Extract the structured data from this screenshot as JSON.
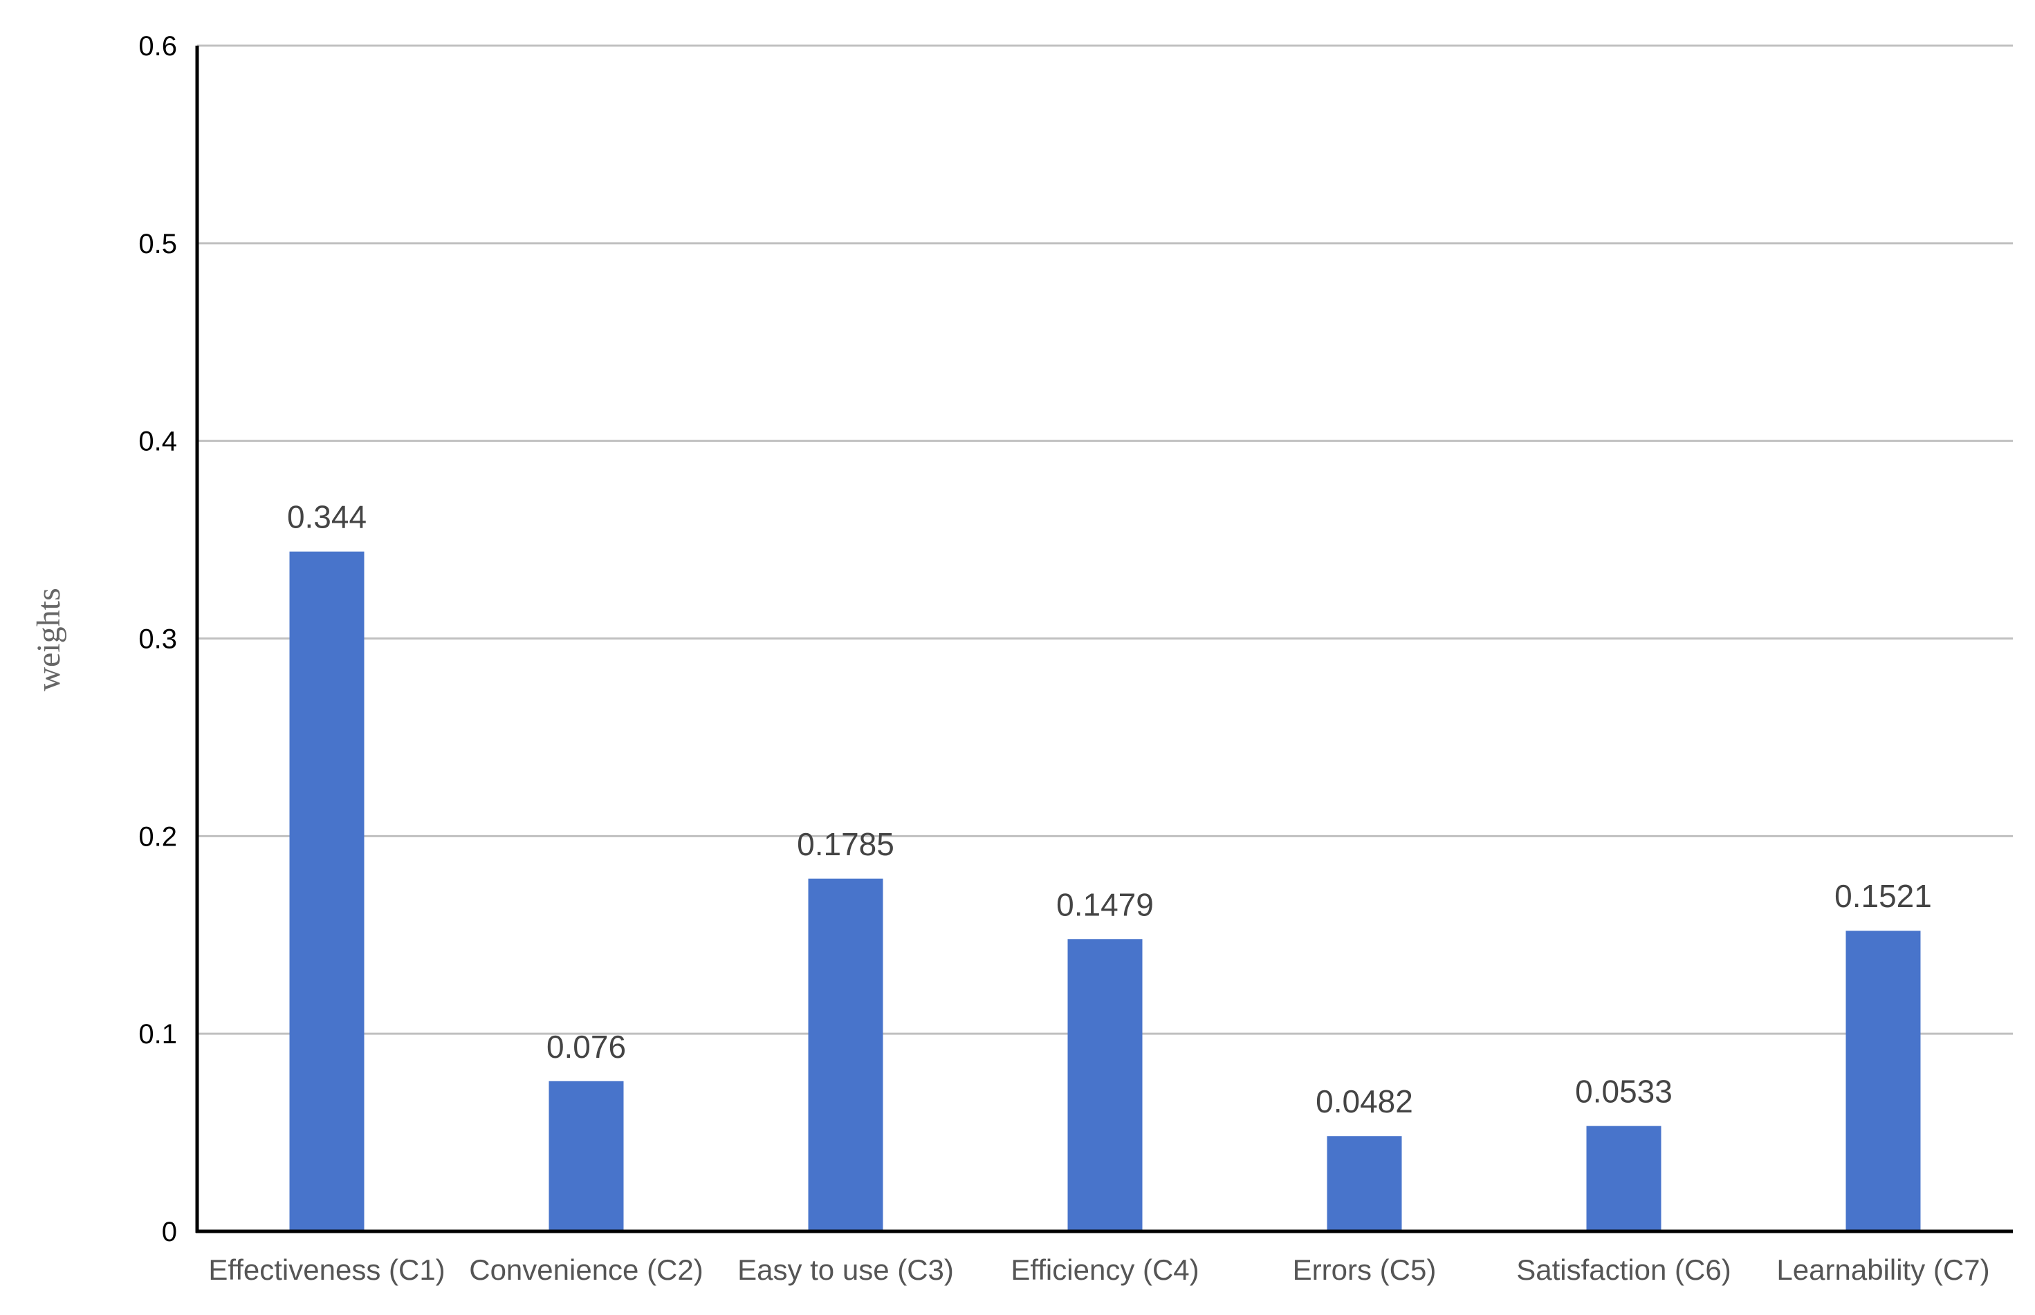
{
  "chart_data": {
    "type": "bar",
    "title": "",
    "xlabel": "",
    "ylabel": "weights",
    "ylim": [
      0,
      0.6
    ],
    "yticks": [
      "0",
      "0.1",
      "0.2",
      "0.3",
      "0.4",
      "0.5",
      "0.6"
    ],
    "ytick_values": [
      0,
      0.1,
      0.2,
      0.3,
      0.4,
      0.5,
      0.6
    ],
    "categories": [
      "Effectiveness (C1)",
      "Convenience (C2)",
      "Easy to use (C3)",
      "Efficiency (C4)",
      "Errors (C5)",
      "Satisfaction (C6)",
      "Learnability (C7)"
    ],
    "values": [
      0.344,
      0.076,
      0.1785,
      0.1479,
      0.0482,
      0.0533,
      0.1521
    ],
    "data_labels": [
      "0.344",
      "0.076",
      "0.1785",
      "0.1479",
      "0.0482",
      "0.0533",
      "0.1521"
    ],
    "grid": true,
    "legend": "none",
    "bar_color": "#4874CB",
    "grid_color": "#C0C0C0",
    "axis_color": "#000000"
  }
}
